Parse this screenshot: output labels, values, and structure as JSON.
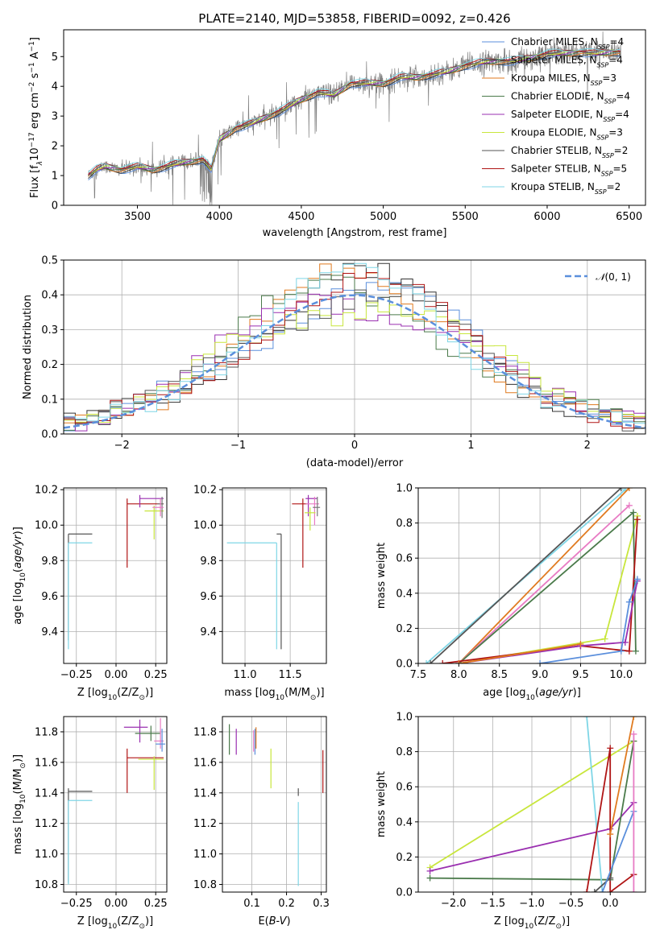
{
  "colors": {
    "Chabrier MILES": "#5b8fdc",
    "Salpeter MILES": "#333333",
    "Kroupa MILES": "#e07a1f",
    "Chabrier ELODIE": "#4a7a4a",
    "Salpeter ELODIE": "#9a2fb0",
    "Kroupa ELODIE": "#c8e63c",
    "Chabrier STELIB": "#555555",
    "Salpeter STELIB": "#b01515",
    "Kroupa STELIB": "#7fd6e6",
    "Pink": "#e87bc4",
    "Gaussian": "#5b8fdc"
  },
  "chart_data": [
    {
      "id": "spectrum",
      "type": "line",
      "title": "PLATE=2140, MJD=53858, FIBERID=0092, z=0.426",
      "xlabel": "wavelength [Angstrom, rest frame]",
      "ylabel": "Flux [f$_\\lambda$10$^{-17}$ erg cm$^{-2}$ s$^{-1}$ A$^{-1}$]",
      "xlim": [
        3050,
        6600
      ],
      "ylim": [
        0,
        5.9
      ],
      "xticks": [
        3500,
        4000,
        4500,
        5000,
        5500,
        6000,
        6500
      ],
      "yticks": [
        0,
        1,
        2,
        3,
        4,
        5
      ],
      "legend_position": "top-right",
      "legend": [
        {
          "label": "Chabrier MILES, N",
          "sub": "SSP",
          "suffix": "=4",
          "color": "#5b8fdc"
        },
        {
          "label": "Salpeter MILES, N",
          "sub": "SSP",
          "suffix": "=4",
          "color": "#333333"
        },
        {
          "label": "Kroupa MILES, N",
          "sub": "SSP",
          "suffix": "=3",
          "color": "#e07a1f"
        },
        {
          "label": "Chabrier ELODIE, N",
          "sub": "SSP",
          "suffix": "=4",
          "color": "#4a7a4a"
        },
        {
          "label": "Salpeter ELODIE, N",
          "sub": "SSP",
          "suffix": "=4",
          "color": "#9a2fb0"
        },
        {
          "label": "Kroupa ELODIE, N",
          "sub": "SSP",
          "suffix": "=3",
          "color": "#c8e63c"
        },
        {
          "label": "Chabrier STELIB, N",
          "sub": "SSP",
          "suffix": "=2",
          "color": "#555555"
        },
        {
          "label": "Salpeter STELIB, N",
          "sub": "SSP",
          "suffix": "=5",
          "color": "#b01515"
        },
        {
          "label": "Kroupa STELIB, N",
          "sub": "SSP",
          "suffix": "=2",
          "color": "#7fd6e6"
        }
      ],
      "model_trend": {
        "x": [
          3200,
          3250,
          3300,
          3400,
          3500,
          3600,
          3700,
          3800,
          3900,
          3950,
          4000,
          4100,
          4200,
          4300,
          4400,
          4500,
          4600,
          4700,
          4800,
          4900,
          5000,
          5100,
          5200,
          5300,
          5400,
          5500,
          5600,
          5700,
          5800,
          5900,
          6000,
          6100,
          6200,
          6300,
          6400,
          6450
        ],
        "y": [
          1.0,
          1.2,
          1.3,
          1.2,
          1.3,
          1.2,
          1.35,
          1.45,
          1.55,
          1.2,
          2.2,
          2.6,
          2.75,
          3.0,
          3.25,
          3.55,
          3.8,
          3.7,
          4.1,
          4.1,
          4.1,
          4.3,
          4.3,
          4.4,
          4.5,
          4.7,
          4.8,
          4.85,
          4.85,
          4.95,
          5.1,
          5.1,
          5.15,
          5.1,
          5.15,
          5.15
        ]
      },
      "data_range": [
        3200,
        6450
      ]
    },
    {
      "id": "residuals",
      "type": "histogram",
      "xlabel": "(data-model)/error",
      "ylabel": "Normed distribution",
      "xlim": [
        -2.5,
        2.5
      ],
      "ylim": [
        0,
        0.5
      ],
      "xticks": [
        -2,
        -1,
        0,
        1,
        2
      ],
      "yticks": [
        0.0,
        0.1,
        0.2,
        0.3,
        0.4,
        0.5
      ],
      "legend": [
        {
          "label": " 𝒩(0, 1)",
          "color": "#5b8fdc",
          "style": "dashed"
        }
      ],
      "legend_position": "top-right",
      "bin_width": 0.1
    },
    {
      "id": "age_vs_Z",
      "type": "errorbar",
      "xlabel": "Z [log₁₀(Z/Z⊙)]",
      "ylabel": "age  [log₁₀(age/yr)]",
      "xlim": [
        -0.33,
        0.32
      ],
      "ylim": [
        9.22,
        10.21
      ],
      "xticks": [
        -0.25,
        0.0,
        0.25
      ],
      "yticks": [
        9.4,
        9.6,
        9.8,
        10.0,
        10.2
      ],
      "points": [
        {
          "x": -0.3,
          "y": 9.95,
          "xe": [
            0,
            0.15
          ],
          "ye": [
            0.6,
            0
          ],
          "c": "#555555"
        },
        {
          "x": -0.3,
          "y": 9.9,
          "xe": [
            0,
            0.15
          ],
          "ye": [
            0.6,
            0
          ],
          "c": "#7fd6e6"
        },
        {
          "x": 0.07,
          "y": 10.12,
          "xe": [
            0,
            0.23
          ],
          "ye": [
            0.36,
            0.03
          ],
          "c": "#b01515"
        },
        {
          "x": 0.15,
          "y": 10.15,
          "xe": [
            0,
            0.15
          ],
          "ye": [
            0.05,
            0.02
          ],
          "c": "#9a2fb0"
        },
        {
          "x": 0.24,
          "y": 10.08,
          "xe": [
            0.06,
            0.06
          ],
          "ye": [
            0.16,
            0.03
          ],
          "c": "#c8e63c"
        },
        {
          "x": 0.29,
          "y": 10.12,
          "xe": [
            0.03,
            0.01
          ],
          "ye": [
            0.08,
            0.04
          ],
          "c": "#777777"
        },
        {
          "x": 0.28,
          "y": 10.1,
          "xe": [
            0.05,
            0.02
          ],
          "ye": [
            0.05,
            0.05
          ],
          "c": "#e87bc4"
        }
      ]
    },
    {
      "id": "age_vs_mass",
      "type": "errorbar",
      "xlabel": "mass [log₁₀(M/M⊙)]",
      "ylabel": "",
      "xlim": [
        10.75,
        11.9
      ],
      "ylim": [
        9.22,
        10.21
      ],
      "xticks": [
        11.0,
        11.5
      ],
      "yticks": [
        9.4,
        9.6,
        9.8,
        10.0,
        10.2
      ],
      "points": [
        {
          "x": 11.4,
          "y": 9.95,
          "xe": [
            0.05,
            0
          ],
          "ye": [
            0.65,
            0
          ],
          "c": "#555555"
        },
        {
          "x": 11.35,
          "y": 9.9,
          "xe": [
            0.55,
            0
          ],
          "ye": [
            0.6,
            0
          ],
          "c": "#7fd6e6"
        },
        {
          "x": 11.64,
          "y": 10.12,
          "xe": [
            0.12,
            0.05
          ],
          "ye": [
            0.36,
            0.03
          ],
          "c": "#b01515"
        },
        {
          "x": 11.7,
          "y": 10.15,
          "xe": [
            0.03,
            0.1
          ],
          "ye": [
            0.1,
            0.02
          ],
          "c": "#9a2fb0"
        },
        {
          "x": 11.77,
          "y": 10.12,
          "xe": [
            0.1,
            0.05
          ],
          "ye": [
            0.12,
            0.04
          ],
          "c": "#e87bc4"
        },
        {
          "x": 11.8,
          "y": 10.1,
          "xe": [
            0.05,
            0.03
          ],
          "ye": [
            0.05,
            0.06
          ],
          "c": "#777777"
        },
        {
          "x": 11.72,
          "y": 10.07,
          "xe": [
            0.06,
            0.06
          ],
          "ye": [
            0.1,
            0.03
          ],
          "c": "#c8e63c"
        }
      ]
    },
    {
      "id": "weight_vs_age",
      "type": "line",
      "xlabel": "age  [log₁₀(age/yr)]",
      "ylabel": "mass weight",
      "xlim": [
        7.5,
        10.3
      ],
      "ylim": [
        0,
        1.0
      ],
      "xticks": [
        7.5,
        8.0,
        8.5,
        9.0,
        9.5,
        10.0
      ],
      "yticks": [
        0.0,
        0.2,
        0.4,
        0.6,
        0.8,
        1.0
      ],
      "series": [
        {
          "c": "#7fd6e6",
          "pts": [
            [
              7.6,
              0
            ],
            [
              10.05,
              0.99
            ]
          ]
        },
        {
          "c": "#555555",
          "pts": [
            [
              7.65,
              0
            ],
            [
              10.0,
              1.0
            ]
          ]
        },
        {
          "c": "#e07a1f",
          "pts": [
            [
              8.0,
              0
            ],
            [
              10.1,
              1.0
            ]
          ]
        },
        {
          "c": "#e87bc4",
          "pts": [
            [
              8.0,
              0
            ],
            [
              10.1,
              0.9
            ]
          ]
        },
        {
          "c": "#c8e63c",
          "pts": [
            [
              8.0,
              0
            ],
            [
              9.8,
              0.14
            ],
            [
              10.2,
              0.84
            ]
          ]
        },
        {
          "c": "#4a7a4a",
          "pts": [
            [
              8.0,
              0
            ],
            [
              10.15,
              0.86
            ],
            [
              10.18,
              0.07
            ]
          ]
        },
        {
          "c": "#b01515",
          "pts": [
            [
              7.8,
              0
            ],
            [
              9.5,
              0.1
            ],
            [
              10.1,
              0.07
            ],
            [
              10.2,
              0.82
            ]
          ]
        },
        {
          "c": "#9a2fb0",
          "pts": [
            [
              8.0,
              0
            ],
            [
              9.5,
              0.1
            ],
            [
              10.05,
              0.12
            ],
            [
              10.2,
              0.47
            ]
          ]
        },
        {
          "c": "#5b8fdc",
          "pts": [
            [
              9.0,
              0
            ],
            [
              10.0,
              0.07
            ],
            [
              10.1,
              0.35
            ],
            [
              10.2,
              0.48
            ]
          ]
        },
        {
          "c": "#e07a1f",
          "pts": [
            [
              8.0,
              0
            ],
            [
              9.5,
              0.11
            ]
          ]
        }
      ]
    },
    {
      "id": "mass_vs_Z",
      "type": "errorbar",
      "xlabel": "Z [log₁₀(Z/Z⊙)]",
      "ylabel": "mass [log₁₀(M/M⊙)]",
      "xlim": [
        -0.33,
        0.32
      ],
      "ylim": [
        10.75,
        11.9
      ],
      "xticks": [
        -0.25,
        0.0,
        0.25
      ],
      "yticks": [
        10.8,
        11.0,
        11.2,
        11.4,
        11.6,
        11.8
      ],
      "points": [
        {
          "x": -0.3,
          "y": 11.41,
          "xe": [
            0,
            0.15
          ],
          "ye": [
            0.6,
            0.02
          ],
          "c": "#555555"
        },
        {
          "x": -0.3,
          "y": 11.35,
          "xe": [
            0,
            0.15
          ],
          "ye": [
            0.55,
            0
          ],
          "c": "#7fd6e6"
        },
        {
          "x": 0.07,
          "y": 11.63,
          "xe": [
            0,
            0.23
          ],
          "ye": [
            0.23,
            0.06
          ],
          "c": "#b01515"
        },
        {
          "x": 0.15,
          "y": 11.83,
          "xe": [
            0.1,
            0.05
          ],
          "ye": [
            0.1,
            0.05
          ],
          "c": "#9a2fb0"
        },
        {
          "x": 0.22,
          "y": 11.79,
          "xe": [
            0.1,
            0.06
          ],
          "ye": [
            0.05,
            0.05
          ],
          "c": "#4a7a4a"
        },
        {
          "x": 0.24,
          "y": 11.62,
          "xe": [
            0.1,
            0.06
          ],
          "ye": [
            0.2,
            0.02
          ],
          "c": "#c8e63c"
        },
        {
          "x": 0.28,
          "y": 11.74,
          "xe": [
            0.04,
            0.02
          ],
          "ye": [
            0.05,
            0.15
          ],
          "c": "#e87bc4"
        },
        {
          "x": 0.29,
          "y": 11.72,
          "xe": [
            0.04,
            0.02
          ],
          "ye": [
            0.05,
            0.1
          ],
          "c": "#5b8fdc"
        }
      ]
    },
    {
      "id": "mass_vs_EBV",
      "type": "errorbar",
      "xlabel": "E(B-V)",
      "ylabel": "",
      "xlim": [
        0.015,
        0.315
      ],
      "ylim": [
        10.75,
        11.9
      ],
      "xticks": [
        0.1,
        0.2,
        0.3
      ],
      "yticks": [
        10.8,
        11.0,
        11.2,
        11.4,
        11.6,
        11.8
      ],
      "points": [
        {
          "x": 0.234,
          "y": 11.41,
          "xe": [
            0,
            0
          ],
          "ye": [
            0.03,
            0.02
          ],
          "c": "#555555"
        },
        {
          "x": 0.234,
          "y": 11.34,
          "xe": [
            0,
            0
          ],
          "ye": [
            0.55,
            0
          ],
          "c": "#7fd6e6"
        },
        {
          "x": 0.305,
          "y": 11.55,
          "xe": [
            0,
            0
          ],
          "ye": [
            0.15,
            0.13
          ],
          "c": "#b01515"
        },
        {
          "x": 0.105,
          "y": 11.74,
          "xe": [
            0,
            0
          ],
          "ye": [
            0.07,
            0.07
          ],
          "c": "#e87bc4"
        },
        {
          "x": 0.112,
          "y": 11.76,
          "xe": [
            0,
            0
          ],
          "ye": [
            0.07,
            0.07
          ],
          "c": "#e07a1f"
        },
        {
          "x": 0.109,
          "y": 11.72,
          "xe": [
            0,
            0
          ],
          "ye": [
            0.07,
            0.1
          ],
          "c": "#5b8fdc"
        },
        {
          "x": 0.055,
          "y": 11.75,
          "xe": [
            0,
            0
          ],
          "ye": [
            0.1,
            0.07
          ],
          "c": "#9a2fb0"
        },
        {
          "x": 0.035,
          "y": 11.75,
          "xe": [
            0,
            0
          ],
          "ye": [
            0.1,
            0.1
          ],
          "c": "#4a7a4a"
        },
        {
          "x": 0.155,
          "y": 11.56,
          "xe": [
            0,
            0
          ],
          "ye": [
            0.13,
            0.13
          ],
          "c": "#c8e63c"
        }
      ]
    },
    {
      "id": "weight_vs_Z",
      "type": "line",
      "xlabel": "Z [log₁₀(Z/Z⊙)]",
      "ylabel": "mass weight",
      "xlim": [
        -2.45,
        0.45
      ],
      "ylim": [
        0,
        1.0
      ],
      "xticks": [
        -2.0,
        -1.5,
        -1.0,
        -0.5,
        0.0
      ],
      "yticks": [
        0.0,
        0.2,
        0.4,
        0.6,
        0.8,
        1.0
      ],
      "series": [
        {
          "c": "#c8e63c",
          "pts": [
            [
              -2.3,
              0.14
            ],
            [
              0.3,
              0.86
            ]
          ]
        },
        {
          "c": "#9a2fb0",
          "pts": [
            [
              -2.3,
              0.12
            ],
            [
              0.0,
              0.36
            ],
            [
              0.3,
              0.51
            ]
          ]
        },
        {
          "c": "#4a7a4a",
          "pts": [
            [
              -2.3,
              0.08
            ],
            [
              0.0,
              0.07
            ],
            [
              0.3,
              0.86
            ]
          ]
        },
        {
          "c": "#7fd6e6",
          "pts": [
            [
              -0.3,
              1.0
            ],
            [
              -0.1,
              0.0
            ]
          ]
        },
        {
          "c": "#b01515",
          "pts": [
            [
              -0.3,
              0.0
            ],
            [
              0.0,
              0.82
            ],
            [
              0.0,
              0.0
            ],
            [
              0.3,
              0.1
            ]
          ]
        },
        {
          "c": "#555555",
          "pts": [
            [
              -0.2,
              0.0
            ],
            [
              0.0,
              0.08
            ]
          ]
        },
        {
          "c": "#5b8fdc",
          "pts": [
            [
              -0.1,
              0.0
            ],
            [
              0.3,
              0.46
            ]
          ]
        },
        {
          "c": "#e07a1f",
          "pts": [
            [
              0.0,
              0.33
            ],
            [
              0.3,
              1.0
            ]
          ]
        },
        {
          "c": "#e87bc4",
          "pts": [
            [
              0.3,
              0.9
            ],
            [
              0.3,
              0.0
            ]
          ]
        }
      ]
    }
  ]
}
